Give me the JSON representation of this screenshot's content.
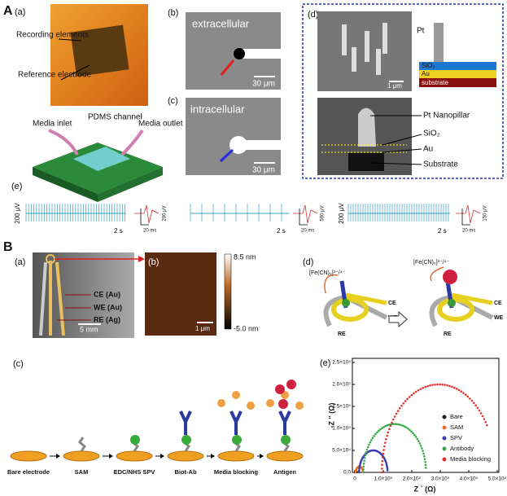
{
  "panel_A": {
    "label": "A",
    "a": {
      "tag": "(a)",
      "labels": [
        "Recording elements",
        "Reference electrode",
        "Media inlet",
        "PDMS channel",
        "Media outlet"
      ]
    },
    "b": {
      "tag": "(b)",
      "title": "extracellular",
      "scale": "30 μm"
    },
    "c": {
      "tag": "(c)",
      "title": "intracellular",
      "scale": "30 μm"
    },
    "d": {
      "tag": "(d)",
      "scale": "1 μm",
      "schematic": [
        "Pt",
        "SiO₂",
        "Au",
        "substrate"
      ],
      "callouts": [
        "Pt Nanopillar",
        "SiO₂",
        "Au",
        "Substrate"
      ]
    },
    "e": {
      "tag": "(e)",
      "traces": [
        {
          "v": "200 μV",
          "t": "2 s",
          "inset_v": "200 μV",
          "inset_t": "20 ms"
        },
        {
          "t": "2 s",
          "inset_v": "500 μV",
          "inset_t": "20 ms"
        },
        {
          "v": "200 μV",
          "t": "2 s",
          "inset_v": "150 μV",
          "inset_t": "20 ms"
        }
      ]
    }
  },
  "panel_B": {
    "label": "B",
    "a": {
      "tag": "(a)",
      "labels": [
        "CE (Au)",
        "WE (Au)",
        "RE (Ag)"
      ],
      "scale": "5 mm"
    },
    "b": {
      "tag": "(b)",
      "colorbar": [
        "8.5 nm",
        "-5.0 nm"
      ],
      "scale": "1 μm"
    },
    "c": {
      "tag": "(c)",
      "steps": [
        "Bare electrode",
        "SAM",
        "EDC/NHS SPV",
        "Biot-Ab",
        "Media blocking",
        "Antigen"
      ]
    },
    "d": {
      "tag": "(d)",
      "ion_left": "[Fe(CN)₆]³⁻/⁴⁻",
      "ion_right": "[Fe(CN)₆]³⁻/⁴⁻",
      "electrodes": [
        "CE",
        "WE",
        "RE"
      ]
    },
    "e": {
      "tag": "(e)",
      "y_label": "-Z '' (Ω)",
      "x_label": "Z ` (Ω)",
      "yticks": [
        "0.0",
        "5.0×10⁴",
        "1.0×10⁵",
        "1.5×10⁵",
        "2.0×10⁵",
        "2.5×10⁵"
      ],
      "xticks": [
        "0",
        "1.0×10⁵",
        "2.0×10⁵",
        "3.0×10⁵",
        "4.0×10⁵",
        "5.0×10⁵"
      ],
      "legend": [
        {
          "name": "Bare",
          "color": "#222222"
        },
        {
          "name": "SAM",
          "color": "#f07020"
        },
        {
          "name": "SPV",
          "color": "#3a3ab0"
        },
        {
          "name": "Antibody",
          "color": "#33aa44"
        },
        {
          "name": "Media blocking",
          "color": "#e03030"
        }
      ]
    }
  }
}
